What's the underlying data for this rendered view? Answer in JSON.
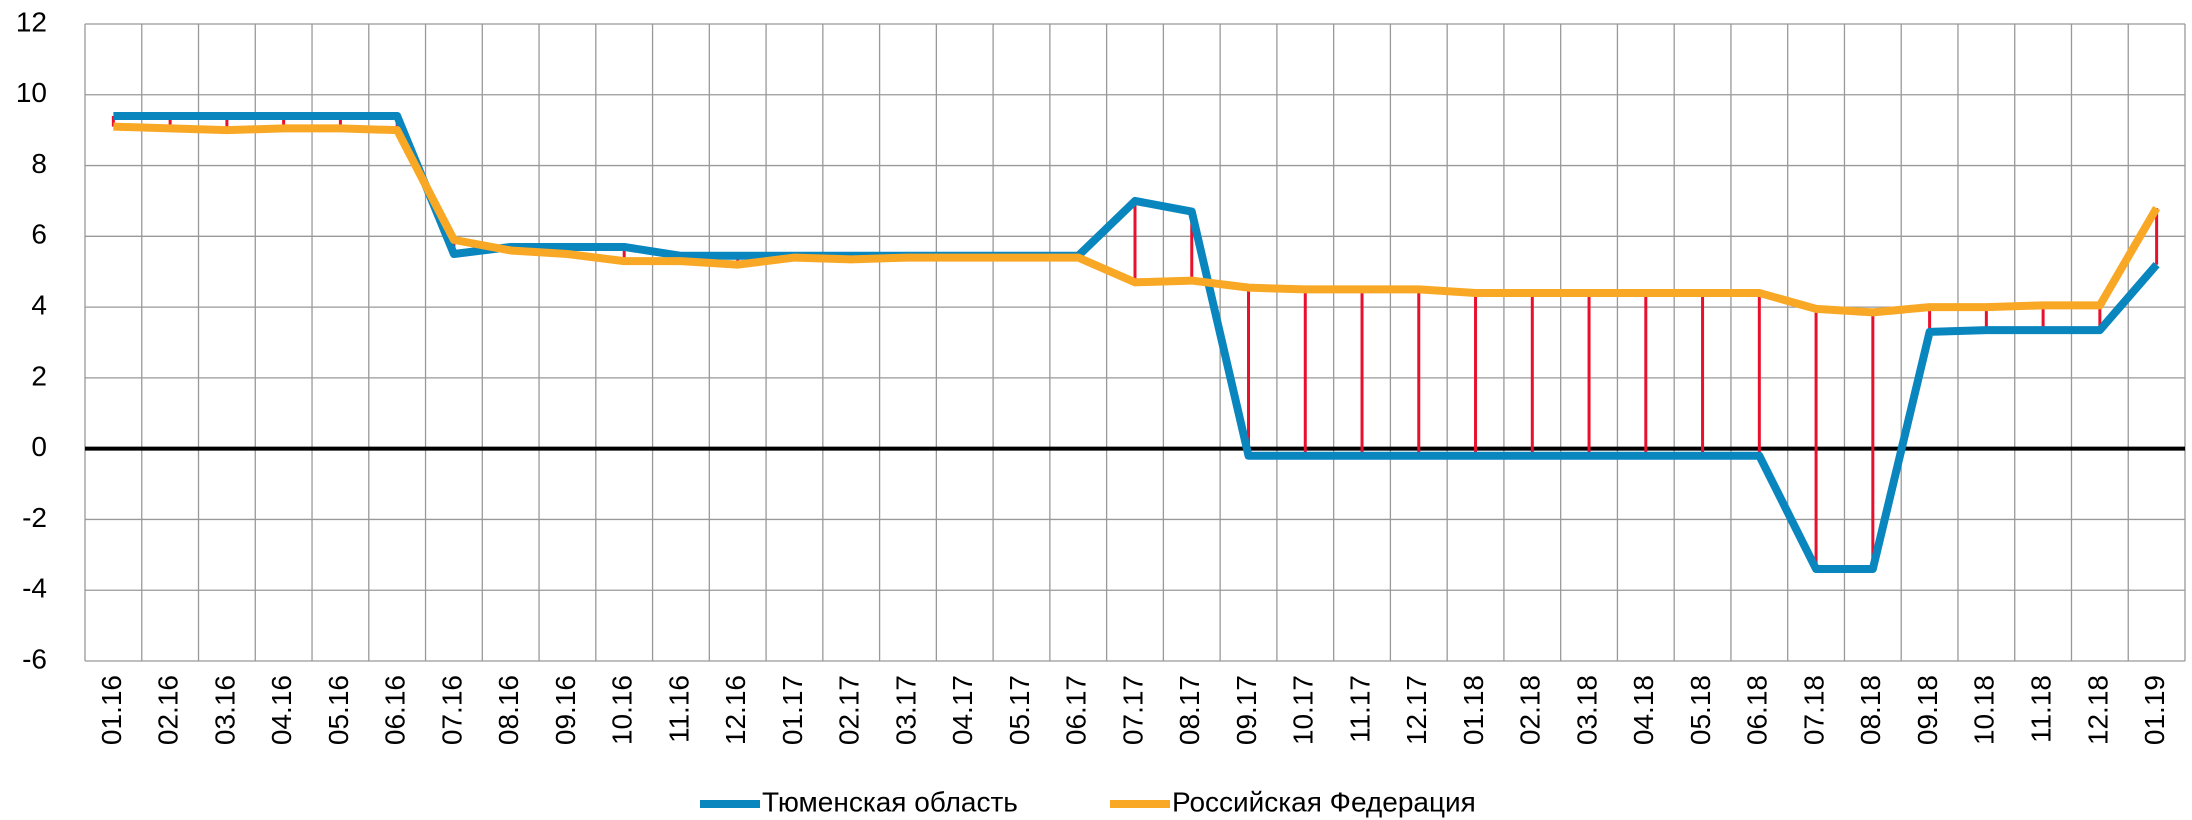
{
  "chart_data": {
    "type": "line",
    "categories": [
      "01.16",
      "02.16",
      "03.16",
      "04.16",
      "05.16",
      "06.16",
      "07.16",
      "08.16",
      "09.16",
      "10.16",
      "11.16",
      "12.16",
      "01.17",
      "02.17",
      "03.17",
      "04.17",
      "05.17",
      "06.17",
      "07.17",
      "08.17",
      "09.17",
      "10.17",
      "11.17",
      "12.17",
      "01.18",
      "02.18",
      "03.18",
      "04.18",
      "05.18",
      "06.18",
      "07.18",
      "08.18",
      "09.18",
      "10.18",
      "11.18",
      "12.18",
      "01.19"
    ],
    "series": [
      {
        "name": "Тюменская область",
        "color": "#0a86bf",
        "values": [
          9.4,
          9.4,
          9.4,
          9.4,
          9.4,
          9.4,
          5.5,
          5.7,
          5.7,
          5.7,
          5.45,
          5.45,
          5.45,
          5.45,
          5.45,
          5.45,
          5.45,
          5.45,
          7.0,
          6.7,
          -0.2,
          -0.2,
          -0.2,
          -0.2,
          -0.2,
          -0.2,
          -0.2,
          -0.2,
          -0.2,
          -0.2,
          -3.4,
          -3.4,
          3.3,
          3.35,
          3.35,
          3.35,
          5.2
        ]
      },
      {
        "name": "Российская Федерация",
        "color": "#f9a825",
        "values": [
          9.1,
          9.05,
          9.0,
          9.05,
          9.05,
          9.0,
          5.9,
          5.6,
          5.5,
          5.3,
          5.3,
          5.2,
          5.4,
          5.35,
          5.4,
          5.4,
          5.4,
          5.4,
          4.7,
          4.75,
          4.55,
          4.5,
          4.5,
          4.5,
          4.4,
          4.4,
          4.4,
          4.4,
          4.4,
          4.4,
          3.95,
          3.85,
          4.0,
          4.0,
          4.05,
          4.05,
          6.8
        ]
      }
    ],
    "ylim": [
      -6,
      12
    ],
    "yticks": [
      -6,
      -4,
      -2,
      0,
      2,
      4,
      6,
      8,
      10,
      12
    ],
    "grid": true,
    "drop_line_color": "#e8112d",
    "negative_tick_color": "#e8112d",
    "legend": "bottom"
  }
}
